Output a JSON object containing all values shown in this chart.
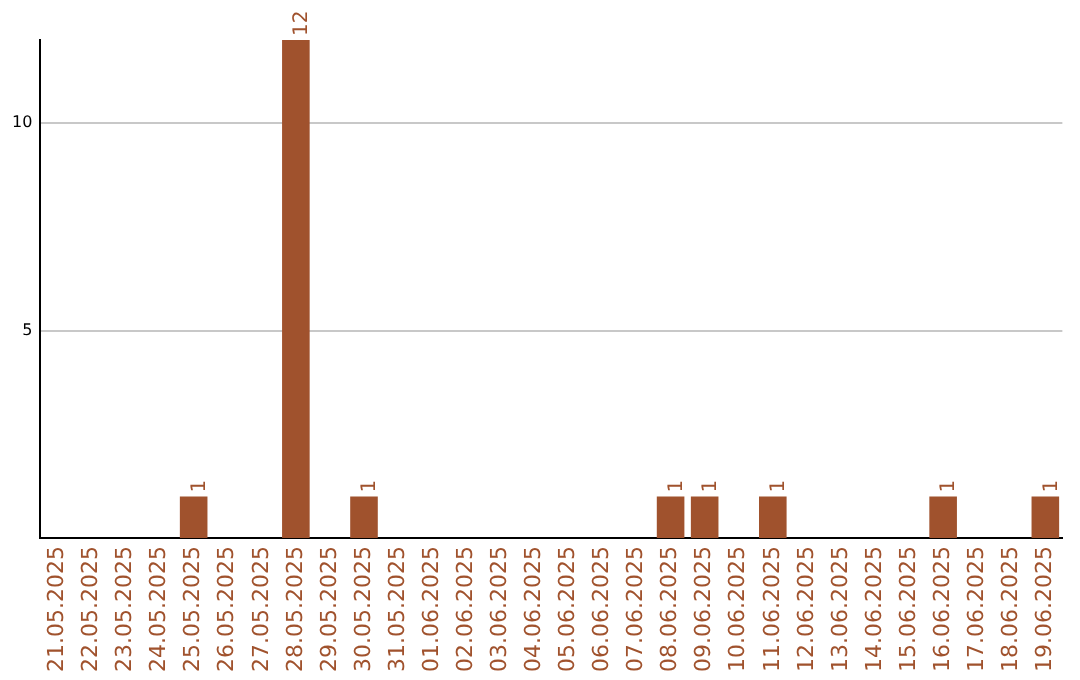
{
  "chart_data": {
    "type": "bar",
    "categories": [
      "21.05.2025",
      "22.05.2025",
      "23.05.2025",
      "24.05.2025",
      "25.05.2025",
      "26.05.2025",
      "27.05.2025",
      "28.05.2025",
      "29.05.2025",
      "30.05.2025",
      "31.05.2025",
      "01.06.2025",
      "02.06.2025",
      "03.06.2025",
      "04.06.2025",
      "05.06.2025",
      "06.06.2025",
      "07.06.2025",
      "08.06.2025",
      "09.06.2025",
      "10.06.2025",
      "11.06.2025",
      "12.06.2025",
      "13.06.2025",
      "14.06.2025",
      "15.06.2025",
      "16.06.2025",
      "17.06.2025",
      "18.06.2025",
      "19.06.2025"
    ],
    "values": [
      0,
      0,
      0,
      0,
      1,
      0,
      0,
      12,
      0,
      1,
      0,
      0,
      0,
      0,
      0,
      0,
      0,
      0,
      1,
      1,
      0,
      1,
      0,
      0,
      0,
      0,
      1,
      0,
      0,
      1
    ],
    "value_labels": [
      null,
      null,
      null,
      null,
      "1",
      null,
      null,
      "12",
      null,
      "1",
      null,
      null,
      null,
      null,
      null,
      null,
      null,
      null,
      "1",
      "1",
      null,
      "1",
      null,
      null,
      null,
      null,
      "1",
      null,
      null,
      "1"
    ],
    "color": "#a0522d",
    "ylim": [
      0,
      12
    ],
    "yticks": [
      5,
      10
    ],
    "grid": "y",
    "legend": false
  }
}
